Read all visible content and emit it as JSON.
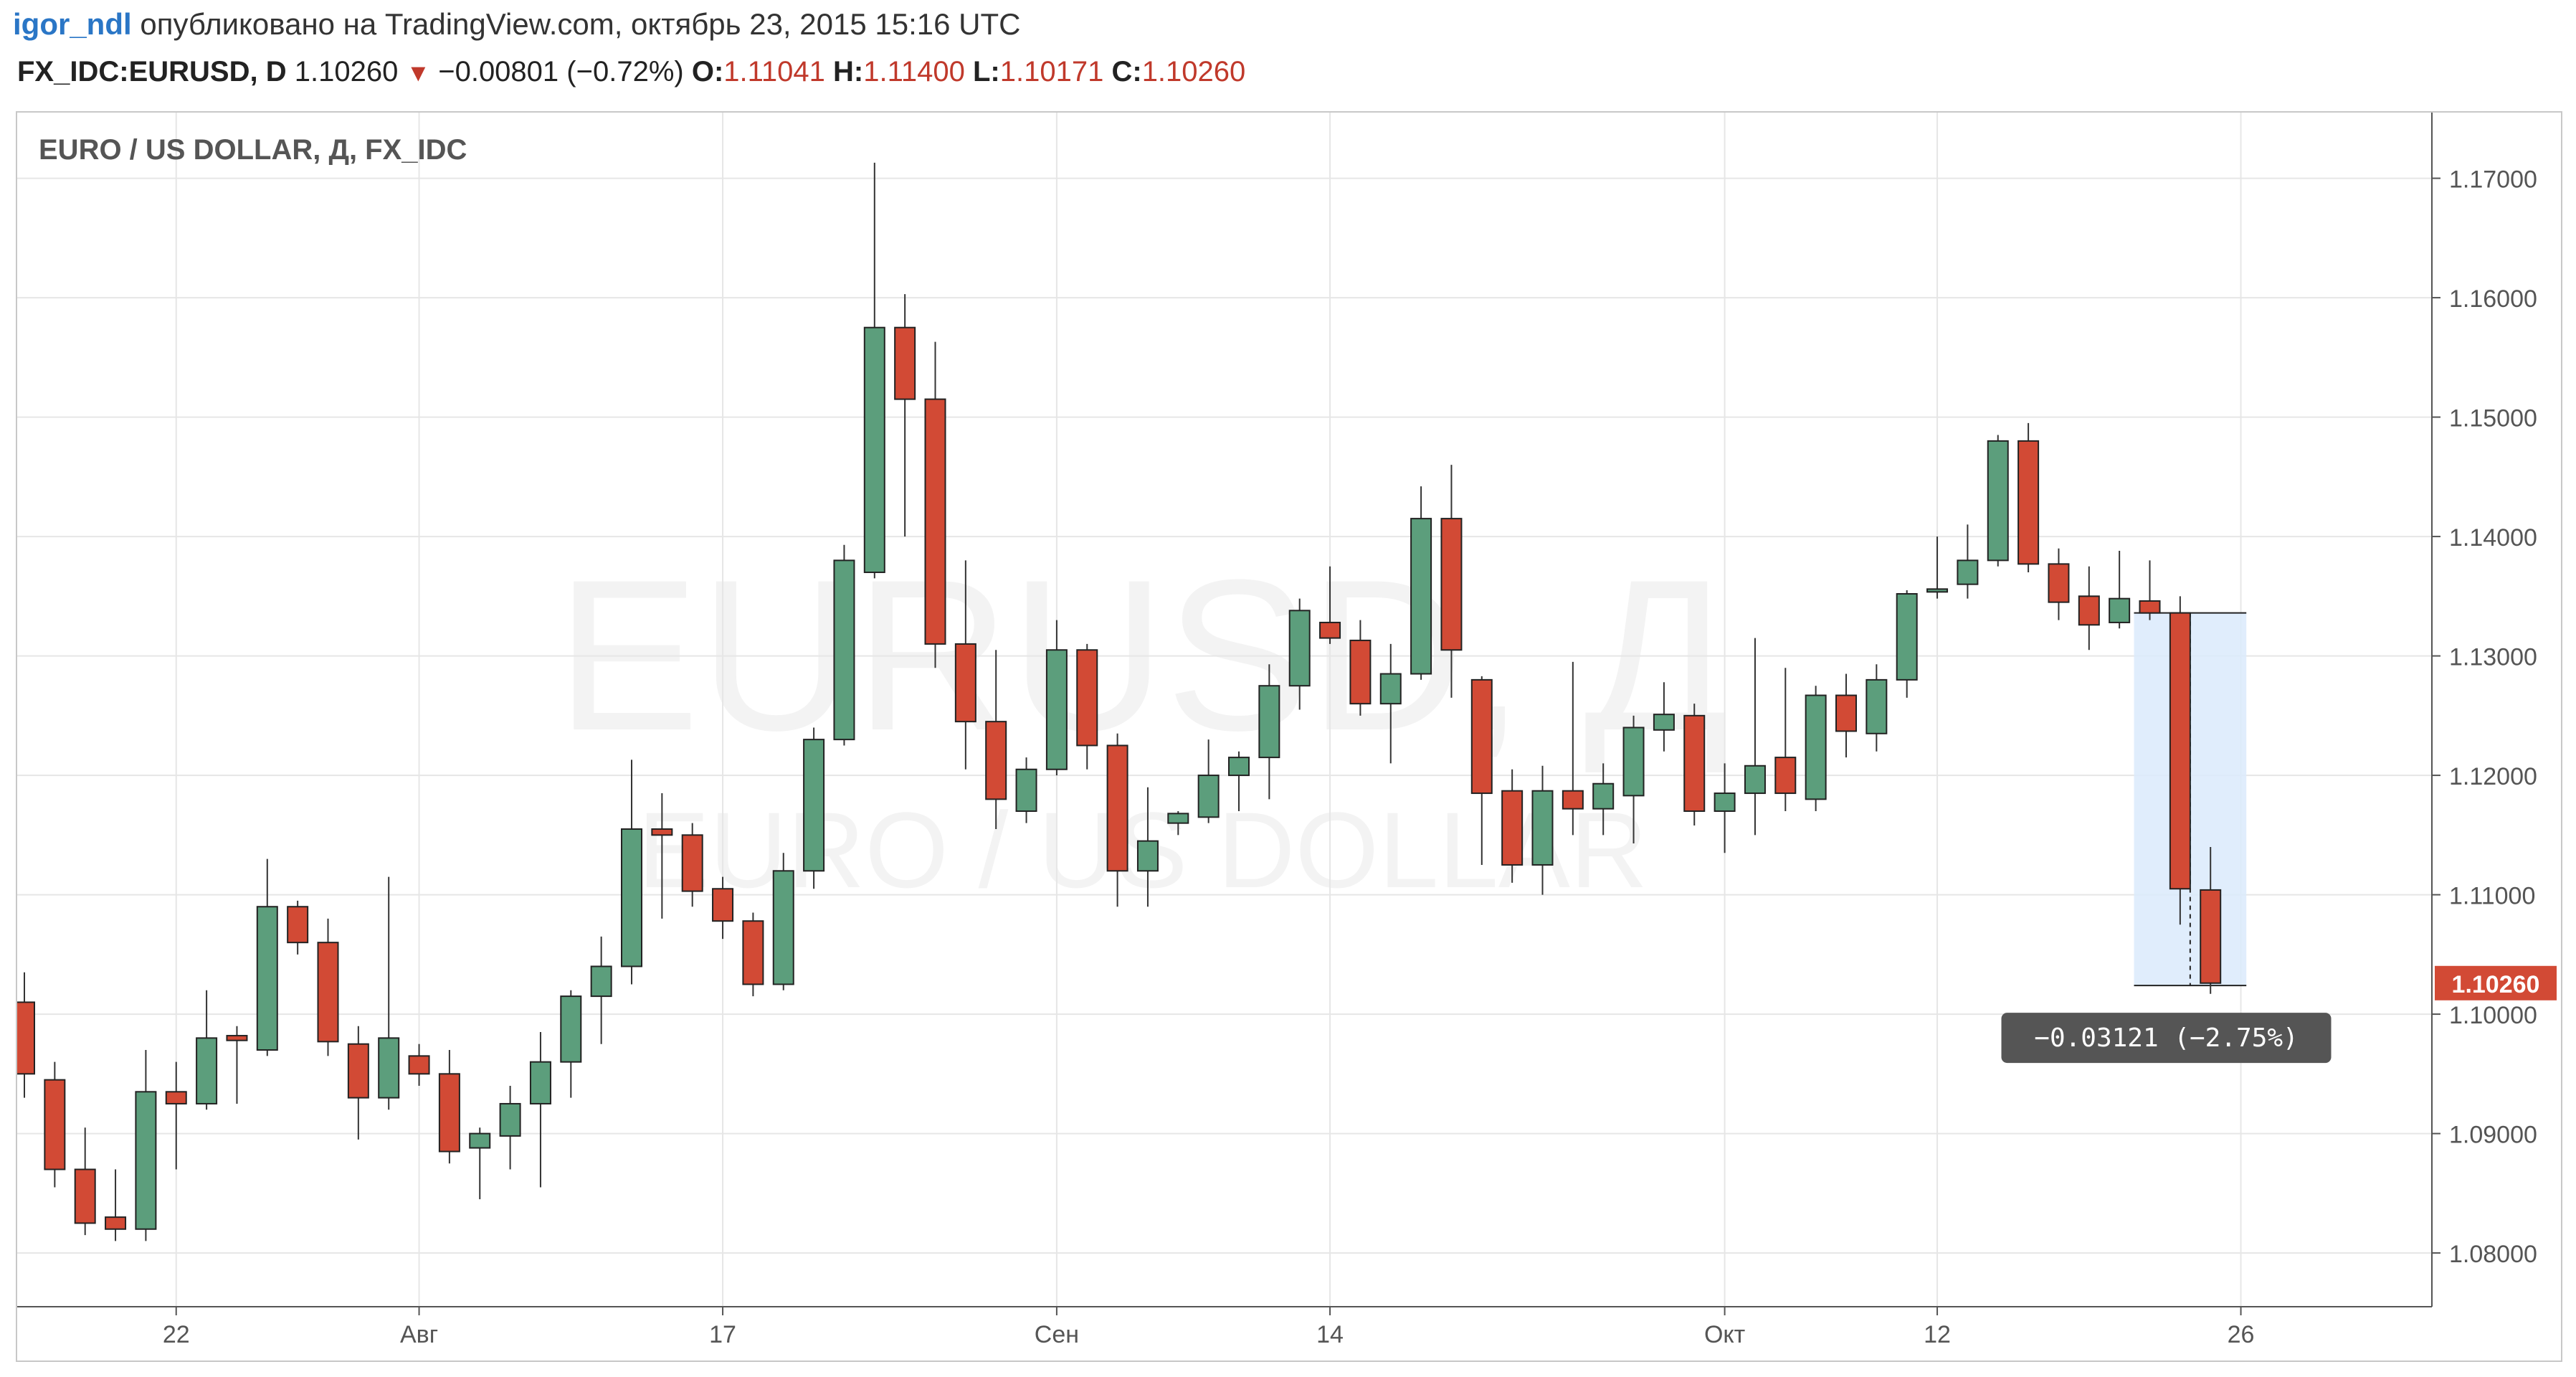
{
  "header": {
    "user": "igor_ndl",
    "published": "опубликовано на TradingView.com, октябрь 23, 2015 15:16 UTC",
    "symbol": "FX_IDC:EURUSD, D",
    "last": "1.10260",
    "arrow": "▼",
    "change": "−0.00801 (−0.72%)",
    "o_label": "O:",
    "o_value": "1.11041",
    "h_label": "H:",
    "h_value": "1.11400",
    "l_label": "L:",
    "l_value": "1.10171",
    "c_label": "C:",
    "c_value": "1.10260"
  },
  "colors": {
    "up": "#5c9e7c",
    "down": "#d24a35",
    "grid": "#e6e6e6",
    "text": "#555555",
    "measure": "#dbeafc"
  },
  "chart_data": {
    "type": "candlestick",
    "title": "EURO / US DOLLAR, Д, FX_IDC",
    "watermark": {
      "symbol": "EURUSD, Д",
      "name": "EURO / US DOLLAR"
    },
    "ylim": [
      1.0755,
      1.1755
    ],
    "y_ticks": [
      "1.17000",
      "1.16000",
      "1.15000",
      "1.14000",
      "1.13000",
      "1.12000",
      "1.11000",
      "1.10000",
      "1.09000",
      "1.08000"
    ],
    "x_ticks": [
      {
        "label": "22",
        "index": 5
      },
      {
        "label": "Авг",
        "index": 13
      },
      {
        "label": "17",
        "index": 23
      },
      {
        "label": "Сен",
        "index": 34
      },
      {
        "label": "14",
        "index": 43
      },
      {
        "label": "Окт",
        "index": 56
      },
      {
        "label": "12",
        "index": 63
      },
      {
        "label": "26",
        "index": 73
      }
    ],
    "last_price_label": "1.10260",
    "measure_label": "−0.03121 (−2.75%)",
    "measure": {
      "from_index": 70,
      "to_index": 72,
      "high": 1.1336,
      "low": 1.1024
    },
    "candles": [
      {
        "o": 1.101,
        "h": 1.1035,
        "l": 1.093,
        "c": 1.095
      },
      {
        "o": 1.0945,
        "h": 1.096,
        "l": 1.0855,
        "c": 1.087
      },
      {
        "o": 1.087,
        "h": 1.0905,
        "l": 1.0815,
        "c": 1.0825
      },
      {
        "o": 1.083,
        "h": 1.087,
        "l": 1.081,
        "c": 1.082
      },
      {
        "o": 1.082,
        "h": 1.097,
        "l": 1.081,
        "c": 1.0935
      },
      {
        "o": 1.0935,
        "h": 1.096,
        "l": 1.087,
        "c": 1.0925
      },
      {
        "o": 1.0925,
        "h": 1.102,
        "l": 1.092,
        "c": 1.098
      },
      {
        "o": 1.0982,
        "h": 1.099,
        "l": 1.0925,
        "c": 1.0978
      },
      {
        "o": 1.097,
        "h": 1.113,
        "l": 1.0965,
        "c": 1.109
      },
      {
        "o": 1.109,
        "h": 1.1095,
        "l": 1.105,
        "c": 1.106
      },
      {
        "o": 1.106,
        "h": 1.108,
        "l": 1.0965,
        "c": 1.0977
      },
      {
        "o": 1.0975,
        "h": 1.099,
        "l": 1.0895,
        "c": 1.093
      },
      {
        "o": 1.093,
        "h": 1.1115,
        "l": 1.092,
        "c": 1.098
      },
      {
        "o": 1.0965,
        "h": 1.0975,
        "l": 1.094,
        "c": 1.095
      },
      {
        "o": 1.095,
        "h": 1.097,
        "l": 1.0875,
        "c": 1.0885
      },
      {
        "o": 1.0888,
        "h": 1.0905,
        "l": 1.0845,
        "c": 1.09
      },
      {
        "o": 1.0898,
        "h": 1.094,
        "l": 1.087,
        "c": 1.0925
      },
      {
        "o": 1.0925,
        "h": 1.0985,
        "l": 1.0855,
        "c": 1.096
      },
      {
        "o": 1.096,
        "h": 1.102,
        "l": 1.093,
        "c": 1.1015
      },
      {
        "o": 1.1015,
        "h": 1.1065,
        "l": 1.0975,
        "c": 1.104
      },
      {
        "o": 1.104,
        "h": 1.1213,
        "l": 1.1025,
        "c": 1.1155
      },
      {
        "o": 1.1155,
        "h": 1.1185,
        "l": 1.108,
        "c": 1.115
      },
      {
        "o": 1.115,
        "h": 1.116,
        "l": 1.109,
        "c": 1.1103
      },
      {
        "o": 1.1105,
        "h": 1.1115,
        "l": 1.1063,
        "c": 1.1078
      },
      {
        "o": 1.1078,
        "h": 1.1085,
        "l": 1.1015,
        "c": 1.1025
      },
      {
        "o": 1.1025,
        "h": 1.1135,
        "l": 1.102,
        "c": 1.112
      },
      {
        "o": 1.112,
        "h": 1.124,
        "l": 1.1105,
        "c": 1.123
      },
      {
        "o": 1.123,
        "h": 1.1393,
        "l": 1.1225,
        "c": 1.138
      },
      {
        "o": 1.137,
        "h": 1.1713,
        "l": 1.1365,
        "c": 1.1575
      },
      {
        "o": 1.1575,
        "h": 1.1603,
        "l": 1.14,
        "c": 1.1515
      },
      {
        "o": 1.1515,
        "h": 1.1563,
        "l": 1.129,
        "c": 1.131
      },
      {
        "o": 1.131,
        "h": 1.138,
        "l": 1.1205,
        "c": 1.1245
      },
      {
        "o": 1.1245,
        "h": 1.1305,
        "l": 1.1155,
        "c": 1.118
      },
      {
        "o": 1.117,
        "h": 1.1215,
        "l": 1.116,
        "c": 1.1205
      },
      {
        "o": 1.1205,
        "h": 1.133,
        "l": 1.12,
        "c": 1.1305
      },
      {
        "o": 1.1305,
        "h": 1.131,
        "l": 1.1205,
        "c": 1.1225
      },
      {
        "o": 1.1225,
        "h": 1.1235,
        "l": 1.109,
        "c": 1.112
      },
      {
        "o": 1.112,
        "h": 1.119,
        "l": 1.109,
        "c": 1.1145
      },
      {
        "o": 1.116,
        "h": 1.117,
        "l": 1.115,
        "c": 1.1168
      },
      {
        "o": 1.1165,
        "h": 1.123,
        "l": 1.116,
        "c": 1.12
      },
      {
        "o": 1.12,
        "h": 1.122,
        "l": 1.117,
        "c": 1.1215
      },
      {
        "o": 1.1215,
        "h": 1.1293,
        "l": 1.118,
        "c": 1.1275
      },
      {
        "o": 1.1275,
        "h": 1.1348,
        "l": 1.1255,
        "c": 1.1338
      },
      {
        "o": 1.1328,
        "h": 1.1375,
        "l": 1.131,
        "c": 1.1315
      },
      {
        "o": 1.1313,
        "h": 1.133,
        "l": 1.125,
        "c": 1.126
      },
      {
        "o": 1.126,
        "h": 1.131,
        "l": 1.121,
        "c": 1.1285
      },
      {
        "o": 1.1285,
        "h": 1.1442,
        "l": 1.128,
        "c": 1.1415
      },
      {
        "o": 1.1415,
        "h": 1.146,
        "l": 1.1265,
        "c": 1.1305
      },
      {
        "o": 1.128,
        "h": 1.1283,
        "l": 1.1125,
        "c": 1.1185
      },
      {
        "o": 1.1187,
        "h": 1.1205,
        "l": 1.111,
        "c": 1.1125
      },
      {
        "o": 1.1125,
        "h": 1.1208,
        "l": 1.11,
        "c": 1.1187
      },
      {
        "o": 1.1187,
        "h": 1.1295,
        "l": 1.115,
        "c": 1.1172
      },
      {
        "o": 1.1172,
        "h": 1.121,
        "l": 1.115,
        "c": 1.1193
      },
      {
        "o": 1.1183,
        "h": 1.125,
        "l": 1.1143,
        "c": 1.124
      },
      {
        "o": 1.1238,
        "h": 1.1278,
        "l": 1.122,
        "c": 1.1251
      },
      {
        "o": 1.125,
        "h": 1.126,
        "l": 1.1158,
        "c": 1.117
      },
      {
        "o": 1.117,
        "h": 1.121,
        "l": 1.1135,
        "c": 1.1185
      },
      {
        "o": 1.1185,
        "h": 1.1315,
        "l": 1.115,
        "c": 1.1208
      },
      {
        "o": 1.1215,
        "h": 1.129,
        "l": 1.117,
        "c": 1.1185
      },
      {
        "o": 1.118,
        "h": 1.1275,
        "l": 1.117,
        "c": 1.1267
      },
      {
        "o": 1.1267,
        "h": 1.1285,
        "l": 1.1215,
        "c": 1.1237
      },
      {
        "o": 1.1235,
        "h": 1.1293,
        "l": 1.122,
        "c": 1.128
      },
      {
        "o": 1.128,
        "h": 1.1355,
        "l": 1.1265,
        "c": 1.1352
      },
      {
        "o": 1.1354,
        "h": 1.14,
        "l": 1.1348,
        "c": 1.1356
      },
      {
        "o": 1.136,
        "h": 1.141,
        "l": 1.1348,
        "c": 1.138
      },
      {
        "o": 1.138,
        "h": 1.1485,
        "l": 1.1375,
        "c": 1.148
      },
      {
        "o": 1.148,
        "h": 1.1495,
        "l": 1.137,
        "c": 1.1377
      },
      {
        "o": 1.1377,
        "h": 1.139,
        "l": 1.133,
        "c": 1.1345
      },
      {
        "o": 1.135,
        "h": 1.1375,
        "l": 1.1305,
        "c": 1.1326
      },
      {
        "o": 1.1328,
        "h": 1.1388,
        "l": 1.1323,
        "c": 1.1348
      },
      {
        "o": 1.1346,
        "h": 1.138,
        "l": 1.133,
        "c": 1.1336
      },
      {
        "o": 1.1336,
        "h": 1.135,
        "l": 1.1075,
        "c": 1.1105
      },
      {
        "o": 1.1104,
        "h": 1.114,
        "l": 1.1017,
        "c": 1.1026
      }
    ]
  }
}
